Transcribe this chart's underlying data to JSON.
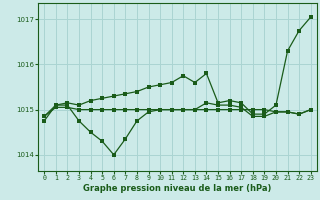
{
  "title": "Graphe pression niveau de la mer (hPa)",
  "background_color": "#cceae8",
  "grid_color": "#aad4d2",
  "line_color": "#1a5c1a",
  "xlim": [
    -0.5,
    23.5
  ],
  "ylim": [
    1013.65,
    1017.35
  ],
  "yticks": [
    1014,
    1015,
    1016,
    1017
  ],
  "xticks": [
    0,
    1,
    2,
    3,
    4,
    5,
    6,
    7,
    8,
    9,
    10,
    11,
    12,
    13,
    14,
    15,
    16,
    17,
    18,
    19,
    20,
    21,
    22,
    23
  ],
  "series_flat_x": [
    0,
    1,
    2,
    3,
    4,
    5,
    6,
    7,
    8,
    9,
    10,
    11,
    12,
    13,
    14,
    15,
    16,
    17,
    18,
    19,
    20,
    21,
    22,
    23
  ],
  "series_flat_y": [
    1014.85,
    1015.05,
    1015.05,
    1015.0,
    1015.0,
    1015.0,
    1015.0,
    1015.0,
    1015.0,
    1015.0,
    1015.0,
    1015.0,
    1015.0,
    1015.0,
    1015.0,
    1015.0,
    1015.0,
    1015.0,
    1015.0,
    1015.0,
    1014.95,
    1014.95,
    1014.9,
    1015.0
  ],
  "series_dip_x": [
    0,
    1,
    2,
    3,
    4,
    5,
    6,
    7,
    8,
    9,
    10,
    11,
    12,
    13,
    14,
    15,
    16,
    17,
    18,
    19,
    20,
    21,
    22,
    23
  ],
  "series_dip_y": [
    1014.75,
    1015.1,
    1015.1,
    1014.75,
    1014.5,
    1014.3,
    1014.0,
    1014.35,
    1014.75,
    1014.95,
    1015.0,
    1015.0,
    1015.0,
    1015.0,
    1015.15,
    1015.1,
    1015.1,
    1015.05,
    1014.85,
    1014.85,
    1014.95,
    1014.95,
    1014.9,
    1015.0
  ],
  "series_rise_x": [
    0,
    1,
    2,
    3,
    4,
    5,
    6,
    7,
    8,
    9,
    10,
    11,
    12,
    13,
    14,
    15,
    16,
    17,
    18,
    19,
    20,
    21,
    22,
    23
  ],
  "series_rise_y": [
    1014.85,
    1015.1,
    1015.15,
    1015.1,
    1015.2,
    1015.25,
    1015.3,
    1015.35,
    1015.4,
    1015.5,
    1015.55,
    1015.6,
    1015.75,
    1015.6,
    1015.8,
    1015.15,
    1015.2,
    1015.15,
    1014.9,
    1014.9,
    1015.1,
    1016.3,
    1016.75,
    1017.05
  ]
}
